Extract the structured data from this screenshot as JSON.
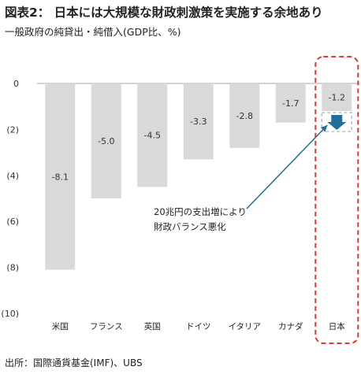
{
  "header": {
    "title": "図表2： 日本には大規模な財政刺激策を実施する余地あり",
    "subtitle": "一般政府の純貸出・純借入(GDP比、%)"
  },
  "footer": {
    "source": "出所：国際通貨基金(IMF)、UBS"
  },
  "chart_data": {
    "type": "bar",
    "categories": [
      "米国",
      "フランス",
      "英国",
      "ドイツ",
      "イタリア",
      "カナダ",
      "日本"
    ],
    "values": [
      -8.1,
      -5.0,
      -4.5,
      -3.3,
      -2.8,
      -1.7,
      -1.2
    ],
    "value_labels": [
      "-8.1",
      "-5.0",
      "-4.5",
      "-3.3",
      "-2.8",
      "-1.7",
      "-1.2"
    ],
    "ylim": [
      -10,
      0
    ],
    "yticks": [
      0,
      -2,
      -4,
      -6,
      -8,
      -10
    ],
    "ytick_labels": [
      "0",
      "(2)",
      "(4)",
      "(6)",
      "(8)",
      "(10)"
    ],
    "grid": false,
    "colors": {
      "bar": "#d9d9d9",
      "highlight_border": "#e8382f",
      "arrow": "#1f6f9a",
      "projection_border": "#bfbfbf"
    },
    "highlight_category": "日本",
    "annotation": {
      "lines": [
        "20兆円の支出増により",
        "財政バランス悪化"
      ]
    }
  }
}
